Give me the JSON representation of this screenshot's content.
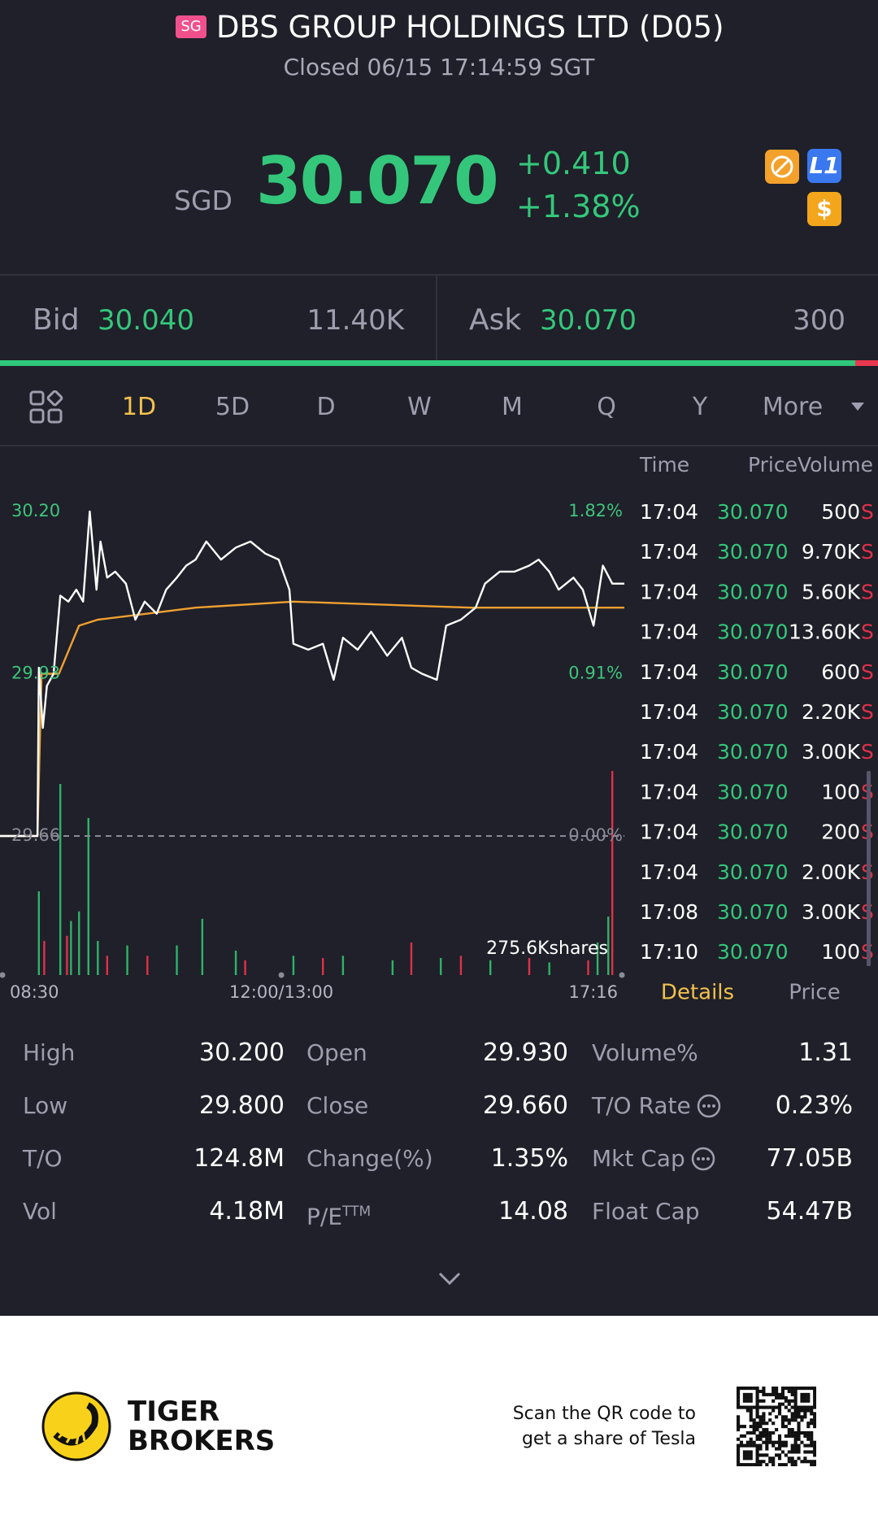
{
  "header": {
    "badge": "SG",
    "title": "DBS GROUP HOLDINGS LTD (D05)",
    "status": "Closed 06/15 17:14:59 SGT"
  },
  "quote": {
    "currency": "SGD",
    "price": "30.070",
    "change": "+0.410",
    "change_pct": "+1.38%",
    "icons": [
      "L1",
      "$"
    ]
  },
  "order_book": {
    "bid_label": "Bid",
    "bid_price": "30.040",
    "bid_size": "11.40K",
    "ask_label": "Ask",
    "ask_price": "30.070",
    "ask_size": "300"
  },
  "tabs": {
    "items": [
      "1D",
      "5D",
      "D",
      "W",
      "M",
      "Q",
      "Y",
      "More"
    ],
    "active": 0
  },
  "chart_data": {
    "type": "line",
    "xlim": [
      0,
      466
    ],
    "xticks": [
      {
        "value": 0,
        "label": "08:30"
      },
      {
        "value": 210,
        "label": "12:00/13:00"
      },
      {
        "value": 466,
        "label": "17:16"
      }
    ],
    "ylim": [
      29.66,
      30.2
    ],
    "yticks": [
      {
        "value": 29.66,
        "label": "29.66"
      },
      {
        "value": 29.93,
        "label": "29.93"
      },
      {
        "value": 30.2,
        "label": "30.20"
      }
    ],
    "y2lim": [
      0,
      1.82
    ],
    "y2ticks": [
      {
        "value": 0,
        "label": "0.00%"
      },
      {
        "value": 0.91,
        "label": "0.91%"
      },
      {
        "value": 1.82,
        "label": "1.82%"
      }
    ],
    "series": [
      {
        "color": "#ffffff",
        "x": [
          0,
          28,
          29,
          32,
          35,
          40,
          45,
          51,
          57,
          62,
          67,
          72,
          75,
          80,
          86,
          94,
          101,
          108,
          117,
          124,
          132,
          139,
          146,
          154,
          165,
          176,
          187,
          198,
          208,
          216,
          219,
          230,
          241,
          249,
          256,
          267,
          277,
          289,
          300,
          307,
          315,
          326,
          333,
          344,
          355,
          362,
          373,
          384,
          395,
          402,
          410,
          417,
          428,
          435,
          443,
          450,
          457,
          466
        ],
        "values": [
          29.66,
          29.66,
          29.94,
          29.84,
          29.91,
          29.93,
          30.06,
          30.05,
          30.07,
          30.05,
          30.2,
          30.07,
          30.15,
          30.09,
          30.1,
          30.08,
          30.02,
          30.05,
          30.03,
          30.07,
          30.09,
          30.11,
          30.12,
          30.15,
          30.12,
          30.14,
          30.15,
          30.13,
          30.12,
          30.07,
          29.98,
          29.97,
          29.98,
          29.92,
          29.99,
          29.97,
          30.0,
          29.96,
          29.99,
          29.94,
          29.93,
          29.92,
          30.01,
          30.02,
          30.04,
          30.08,
          30.1,
          30.1,
          30.11,
          30.12,
          30.1,
          30.07,
          30.09,
          30.07,
          30.01,
          30.11,
          30.08,
          30.08
        ]
      },
      {
        "color": "#f0a030",
        "x": [
          0,
          28,
          31,
          44,
          59,
          73,
          110,
          146,
          219,
          351,
          466
        ],
        "values": [
          29.66,
          29.66,
          29.93,
          29.93,
          30.01,
          30.02,
          30.03,
          30.04,
          30.05,
          30.04,
          30.04
        ]
      }
    ],
    "volume": {
      "label": "275.6Kshares",
      "ylim": [
        0,
        275.6
      ],
      "series": [
        {
          "color": "#2fb36a",
          "x": [
            29,
            45,
            53,
            59,
            66,
            73,
            95,
            132,
            151,
            176,
            219,
            256,
            293,
            329,
            366,
            410,
            446,
            454
          ],
          "values": [
            113,
            258,
            73,
            86,
            212,
            46,
            40,
            40,
            76,
            33,
            26,
            26,
            20,
            23,
            20,
            17,
            44,
            79
          ]
        },
        {
          "color": "#e0314b",
          "x": [
            33,
            50,
            80,
            110,
            183,
            241,
            307,
            344,
            395,
            439,
            457
          ],
          "values": [
            46,
            53,
            26,
            26,
            20,
            23,
            44,
            26,
            23,
            20,
            275.6
          ]
        }
      ]
    }
  },
  "trades": {
    "headers": [
      "Time",
      "Price",
      "Volume"
    ],
    "rows": [
      [
        "17:04",
        "30.070",
        "500",
        "S"
      ],
      [
        "17:04",
        "30.070",
        "9.70K",
        "S"
      ],
      [
        "17:04",
        "30.070",
        "5.60K",
        "S"
      ],
      [
        "17:04",
        "30.070",
        "13.60K",
        "S"
      ],
      [
        "17:04",
        "30.070",
        "600",
        "S"
      ],
      [
        "17:04",
        "30.070",
        "2.20K",
        "S"
      ],
      [
        "17:04",
        "30.070",
        "3.00K",
        "S"
      ],
      [
        "17:04",
        "30.070",
        "100",
        "S"
      ],
      [
        "17:04",
        "30.070",
        "200",
        "S"
      ],
      [
        "17:04",
        "30.070",
        "2.00K",
        "S"
      ],
      [
        "17:08",
        "30.070",
        "3.00K",
        "S"
      ],
      [
        "17:10",
        "30.070",
        "100",
        "S"
      ]
    ]
  },
  "panel_tabs": {
    "items": [
      "Details",
      "Price"
    ],
    "active": 0
  },
  "stats": {
    "items": [
      {
        "label": "High",
        "value": "30.200"
      },
      {
        "label": "Open",
        "value": "29.930"
      },
      {
        "label": "Volume%",
        "value": "1.31"
      },
      {
        "label": "Low",
        "value": "29.800"
      },
      {
        "label": "Close",
        "value": "29.660"
      },
      {
        "label": "T/O Rate",
        "value": "0.23%",
        "info": true
      },
      {
        "label": "T/O",
        "value": "124.8M"
      },
      {
        "label": "Change(%)",
        "value": "1.35%"
      },
      {
        "label": "Mkt Cap",
        "value": "77.05B",
        "info": true
      },
      {
        "label": "Vol",
        "value": "4.18M"
      },
      {
        "label": "P/E",
        "sup": "TTM",
        "value": "14.08"
      },
      {
        "label": "Float Cap",
        "value": "54.47B"
      }
    ]
  },
  "footer": {
    "brand": [
      "TIGER",
      "BROKERS"
    ],
    "promo": [
      "Scan the QR code to",
      "get a share of Tesla"
    ]
  }
}
